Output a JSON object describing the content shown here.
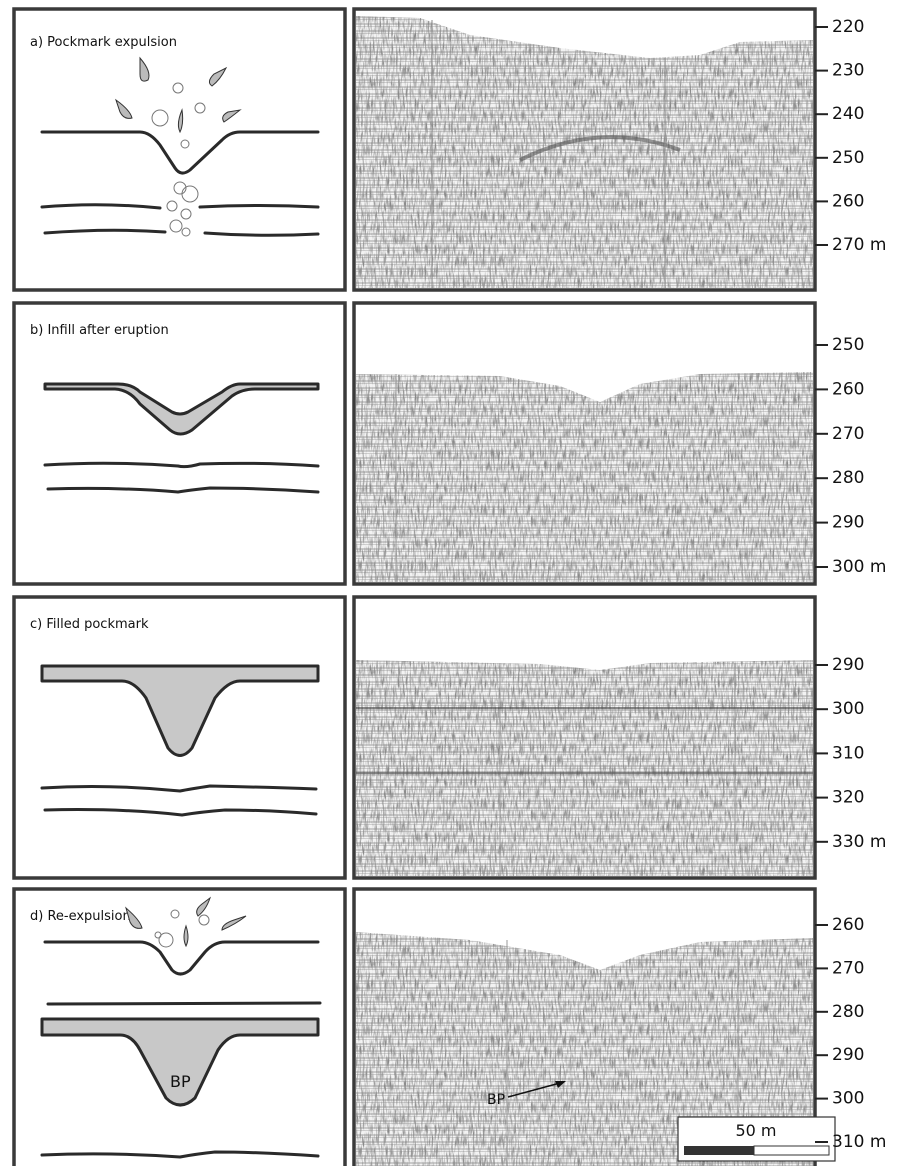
{
  "panels": [
    {
      "title": "a) Pockmark expulsion",
      "depth_labels": [
        "220",
        "230",
        "240",
        "250",
        "260",
        "270 m"
      ]
    },
    {
      "title": "b) Infill after eruption",
      "depth_labels": [
        "250",
        "260",
        "270",
        "280",
        "290",
        "300 m"
      ]
    },
    {
      "title": "c) Filled pockmark",
      "depth_labels": [
        "290",
        "300",
        "310",
        "320",
        "330 m"
      ]
    },
    {
      "title": "d) Re-expulsion",
      "depth_labels": [
        "260",
        "270",
        "280",
        "290",
        "300",
        "310 m"
      ],
      "diagram_label": "BP",
      "profile_label": "BP",
      "scale_bar": "50 m"
    }
  ]
}
